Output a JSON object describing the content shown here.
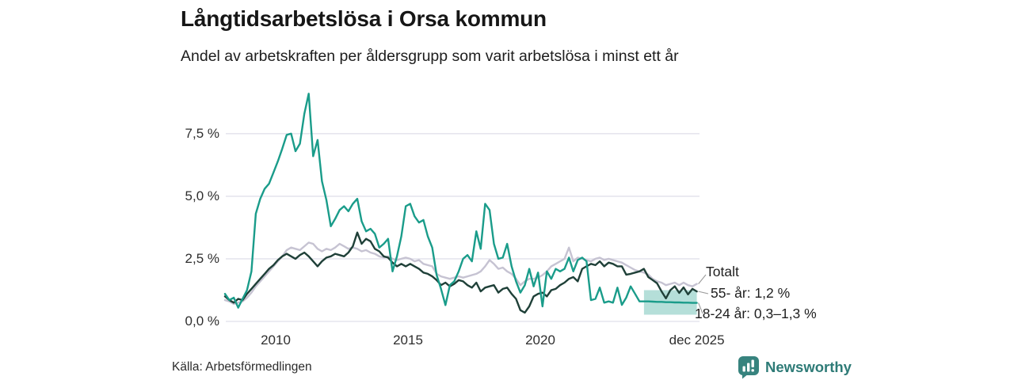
{
  "footer": {
    "source": "Källa: Arbetsförmedlingen",
    "brand": "Newsworthy"
  },
  "colors": {
    "youth_line": "#1a9c8a",
    "older_line": "#1f4038",
    "total_line": "#c6c3d2",
    "band_fill": "rgba(26,156,138,0.32)",
    "gridline": "#e6e5ee",
    "leader": "#9a9a9a",
    "brand_teal": "#37837e"
  },
  "chart_data": {
    "type": "line",
    "title": "Långtidsarbetslösa i Orsa kommun",
    "subtitle": "Andel av arbetskraften per åldersgrupp som varit arbetslösa i minst ett år",
    "unit": "%",
    "grid": "horizontal",
    "legend_position": "right-edge-annotations",
    "x_start_year": 2008.083,
    "x_step_years": 0.16667,
    "xlim": [
      2008.0,
      2026.0
    ],
    "ylim": [
      0,
      9.4
    ],
    "y_ticks": [
      {
        "v": 0.0,
        "label": "0,0 %"
      },
      {
        "v": 2.5,
        "label": "2,5 %"
      },
      {
        "v": 5.0,
        "label": "5,0 %"
      },
      {
        "v": 7.5,
        "label": "7,5 %"
      }
    ],
    "x_ticks": [
      {
        "v": 2010,
        "label": "2010"
      },
      {
        "v": 2015,
        "label": "2015"
      },
      {
        "v": 2020,
        "label": "2020"
      },
      {
        "v": 2025.917,
        "label": "dec 2025"
      }
    ],
    "series": [
      {
        "name": "Totalt",
        "color": "#c6c3d2",
        "values": [
          0.85,
          0.8,
          0.7,
          0.75,
          0.8,
          0.95,
          1.15,
          1.4,
          1.6,
          1.8,
          2.0,
          2.2,
          2.4,
          2.6,
          2.85,
          2.95,
          2.9,
          2.85,
          3.0,
          3.15,
          3.1,
          2.9,
          2.8,
          2.9,
          2.85,
          2.95,
          3.1,
          3.0,
          2.9,
          2.95,
          2.9,
          2.8,
          2.85,
          2.75,
          2.7,
          2.6,
          2.55,
          2.6,
          2.5,
          2.45,
          2.5,
          2.55,
          2.5,
          2.4,
          2.45,
          2.3,
          2.25,
          2.2,
          1.9,
          1.8,
          1.75,
          1.7,
          1.75,
          1.8,
          1.75,
          1.8,
          1.85,
          1.9,
          2.0,
          2.2,
          2.45,
          2.3,
          2.1,
          2.15,
          2.0,
          1.9,
          1.7,
          1.45,
          1.6,
          1.7,
          1.7,
          1.75,
          1.85,
          2.0,
          2.2,
          2.3,
          2.4,
          2.5,
          2.95,
          2.4,
          2.55,
          2.5,
          2.45,
          2.4,
          2.5,
          2.55,
          2.45,
          2.5,
          2.45,
          2.4,
          2.35,
          2.25,
          2.15,
          2.05,
          2.0,
          1.95,
          1.87,
          1.7,
          1.6,
          1.55,
          1.45,
          1.5,
          1.55,
          1.45,
          1.55,
          1.45,
          1.4,
          1.5
        ]
      },
      {
        "name": "55- år",
        "color": "#1f4038",
        "values": [
          1.0,
          0.85,
          0.75,
          0.9,
          0.85,
          1.1,
          1.3,
          1.5,
          1.7,
          1.9,
          2.1,
          2.25,
          2.45,
          2.6,
          2.7,
          2.6,
          2.5,
          2.65,
          2.75,
          2.6,
          2.4,
          2.2,
          2.4,
          2.55,
          2.6,
          2.7,
          2.65,
          2.6,
          2.75,
          3.0,
          3.55,
          3.1,
          3.3,
          3.2,
          2.9,
          2.8,
          2.6,
          2.55,
          2.35,
          2.2,
          2.3,
          2.2,
          2.3,
          2.2,
          2.1,
          1.95,
          1.9,
          1.8,
          1.65,
          1.45,
          1.55,
          1.4,
          1.5,
          1.65,
          1.6,
          1.45,
          1.35,
          1.55,
          1.2,
          1.35,
          1.4,
          1.45,
          1.15,
          1.3,
          1.35,
          1.1,
          0.9,
          0.45,
          0.35,
          0.6,
          1.0,
          1.1,
          1.15,
          1.0,
          1.25,
          1.3,
          1.45,
          1.55,
          1.7,
          1.77,
          1.6,
          2.1,
          2.2,
          2.3,
          2.25,
          2.4,
          2.2,
          2.35,
          2.3,
          2.2,
          2.2,
          1.87,
          1.9,
          1.95,
          2.0,
          2.1,
          1.77,
          1.65,
          1.52,
          1.2,
          0.92,
          1.25,
          1.4,
          1.14,
          1.36,
          1.08,
          1.3,
          1.2
        ]
      },
      {
        "name": "18-24 år",
        "color": "#1a9c8a",
        "values": [
          1.1,
          0.85,
          0.95,
          0.55,
          0.9,
          1.25,
          2.0,
          4.3,
          4.9,
          5.3,
          5.5,
          5.95,
          6.4,
          6.9,
          7.45,
          7.5,
          6.8,
          7.1,
          8.3,
          9.1,
          6.6,
          7.25,
          5.6,
          4.85,
          3.8,
          4.1,
          4.45,
          4.6,
          4.4,
          4.7,
          4.9,
          4.0,
          3.6,
          3.7,
          3.5,
          2.95,
          3.1,
          3.3,
          2.0,
          2.6,
          3.4,
          4.6,
          4.7,
          4.2,
          3.95,
          4.05,
          3.4,
          2.95,
          1.85,
          1.3,
          0.65,
          1.45,
          1.6,
          2.0,
          2.5,
          2.65,
          2.4,
          3.6,
          2.9,
          4.7,
          4.45,
          3.1,
          2.5,
          2.55,
          3.1,
          2.2,
          1.6,
          1.15,
          1.45,
          2.1,
          1.4,
          1.95,
          0.6,
          2.0,
          1.7,
          2.1,
          2.0,
          2.1,
          2.55,
          2.0,
          2.45,
          2.55,
          2.4,
          0.85,
          0.9,
          1.35,
          0.75,
          0.8,
          0.75,
          1.35,
          0.66,
          0.95,
          1.4,
          1.1,
          0.8,
          0.8,
          0.8,
          0.79,
          0.78,
          0.78,
          0.77,
          0.77,
          0.76,
          0.76,
          0.75,
          0.75,
          0.74,
          0.74
        ]
      }
    ],
    "uncertainty_band": {
      "series": "18-24 år",
      "x_from": 2023.92,
      "x_to": 2025.917,
      "low": 0.27,
      "high": 1.25,
      "color": "rgba(26,156,138,0.32)"
    },
    "annotations": [
      {
        "series": "Totalt",
        "label": "Totalt"
      },
      {
        "series": "55- år",
        "label": "55- år: 1,2 %"
      },
      {
        "series": "18-24 år",
        "label": "18-24 år: 0,3–1,3 %"
      }
    ]
  }
}
